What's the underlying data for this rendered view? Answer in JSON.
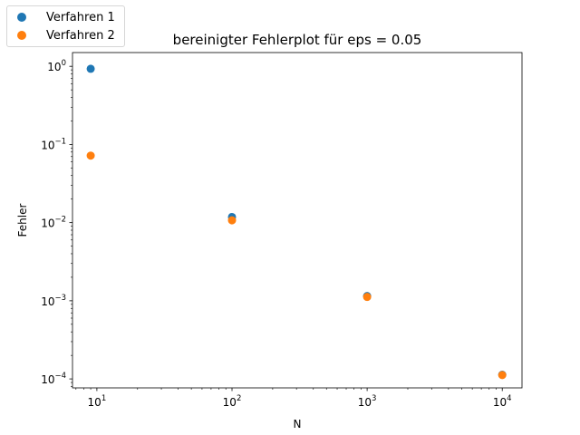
{
  "chart_data": {
    "type": "scatter",
    "title": "bereinigter Fehlerplot für eps = 0.05",
    "xlabel": "N",
    "ylabel": "Fehler",
    "xscale": "log",
    "yscale": "log",
    "xlim": [
      6.6,
      14000
    ],
    "ylim": [
      7.68e-05,
      1.5
    ],
    "grid": false,
    "legend_position": "top-left, outside axes",
    "x_ticks": [
      {
        "value": 10,
        "base": "10",
        "exp": "1"
      },
      {
        "value": 100,
        "base": "10",
        "exp": "2"
      },
      {
        "value": 1000,
        "base": "10",
        "exp": "3"
      },
      {
        "value": 10000,
        "base": "10",
        "exp": "4"
      }
    ],
    "y_ticks": [
      {
        "value": 1,
        "base": "10",
        "exp": "0"
      },
      {
        "value": 0.1,
        "base": "10",
        "exp": "−1"
      },
      {
        "value": 0.01,
        "base": "10",
        "exp": "−2"
      },
      {
        "value": 0.001,
        "base": "10",
        "exp": "−3"
      },
      {
        "value": 0.0001,
        "base": "10",
        "exp": "−4"
      }
    ],
    "series": [
      {
        "name": "Verfahren 1",
        "color": "#1f77b4",
        "x": [
          9,
          100,
          1000,
          10000
        ],
        "y": [
          0.93,
          0.0118,
          0.00115,
          0.000113
        ]
      },
      {
        "name": "Verfahren 2",
        "color": "#ff7f0e",
        "x": [
          9,
          100,
          1000,
          10000
        ],
        "y": [
          0.072,
          0.0107,
          0.00112,
          0.000112
        ]
      }
    ]
  }
}
